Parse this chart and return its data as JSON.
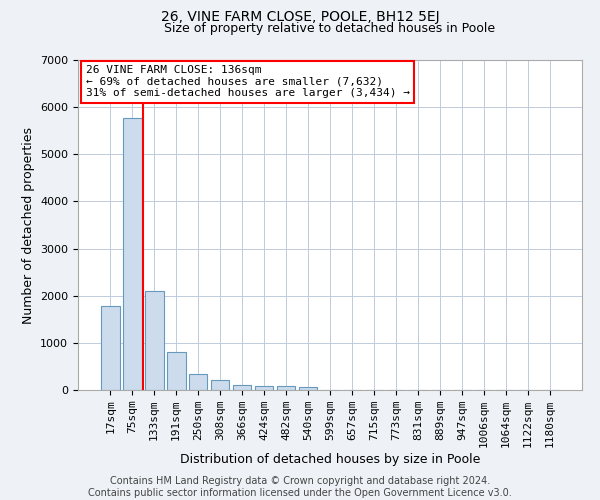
{
  "title": "26, VINE FARM CLOSE, POOLE, BH12 5EJ",
  "subtitle": "Size of property relative to detached houses in Poole",
  "xlabel": "Distribution of detached houses by size in Poole",
  "ylabel": "Number of detached properties",
  "bar_color": "#ccdcec",
  "bar_edge_color": "#6699bb",
  "categories": [
    "17sqm",
    "75sqm",
    "133sqm",
    "191sqm",
    "250sqm",
    "308sqm",
    "366sqm",
    "424sqm",
    "482sqm",
    "540sqm",
    "599sqm",
    "657sqm",
    "715sqm",
    "773sqm",
    "831sqm",
    "889sqm",
    "947sqm",
    "1006sqm",
    "1064sqm",
    "1122sqm",
    "1180sqm"
  ],
  "values": [
    1780,
    5780,
    2090,
    800,
    345,
    220,
    100,
    85,
    85,
    55,
    0,
    0,
    0,
    0,
    0,
    0,
    0,
    0,
    0,
    0,
    0
  ],
  "ylim": [
    0,
    7000
  ],
  "yticks": [
    0,
    1000,
    2000,
    3000,
    4000,
    5000,
    6000,
    7000
  ],
  "annotation_line1": "26 VINE FARM CLOSE: 136sqm",
  "annotation_line2": "← 69% of detached houses are smaller (7,632)",
  "annotation_line3": "31% of semi-detached houses are larger (3,434) →",
  "red_line_x": 1.5,
  "footer_line1": "Contains HM Land Registry data © Crown copyright and database right 2024.",
  "footer_line2": "Contains public sector information licensed under the Open Government Licence v3.0.",
  "background_color": "#eef2f6",
  "plot_bg_color": "#ffffff",
  "grid_color": "#c0ccdc",
  "title_fontsize": 10,
  "subtitle_fontsize": 9,
  "ylabel_fontsize": 9,
  "xlabel_fontsize": 9,
  "tick_fontsize": 8,
  "annot_fontsize": 8,
  "footer_fontsize": 7
}
